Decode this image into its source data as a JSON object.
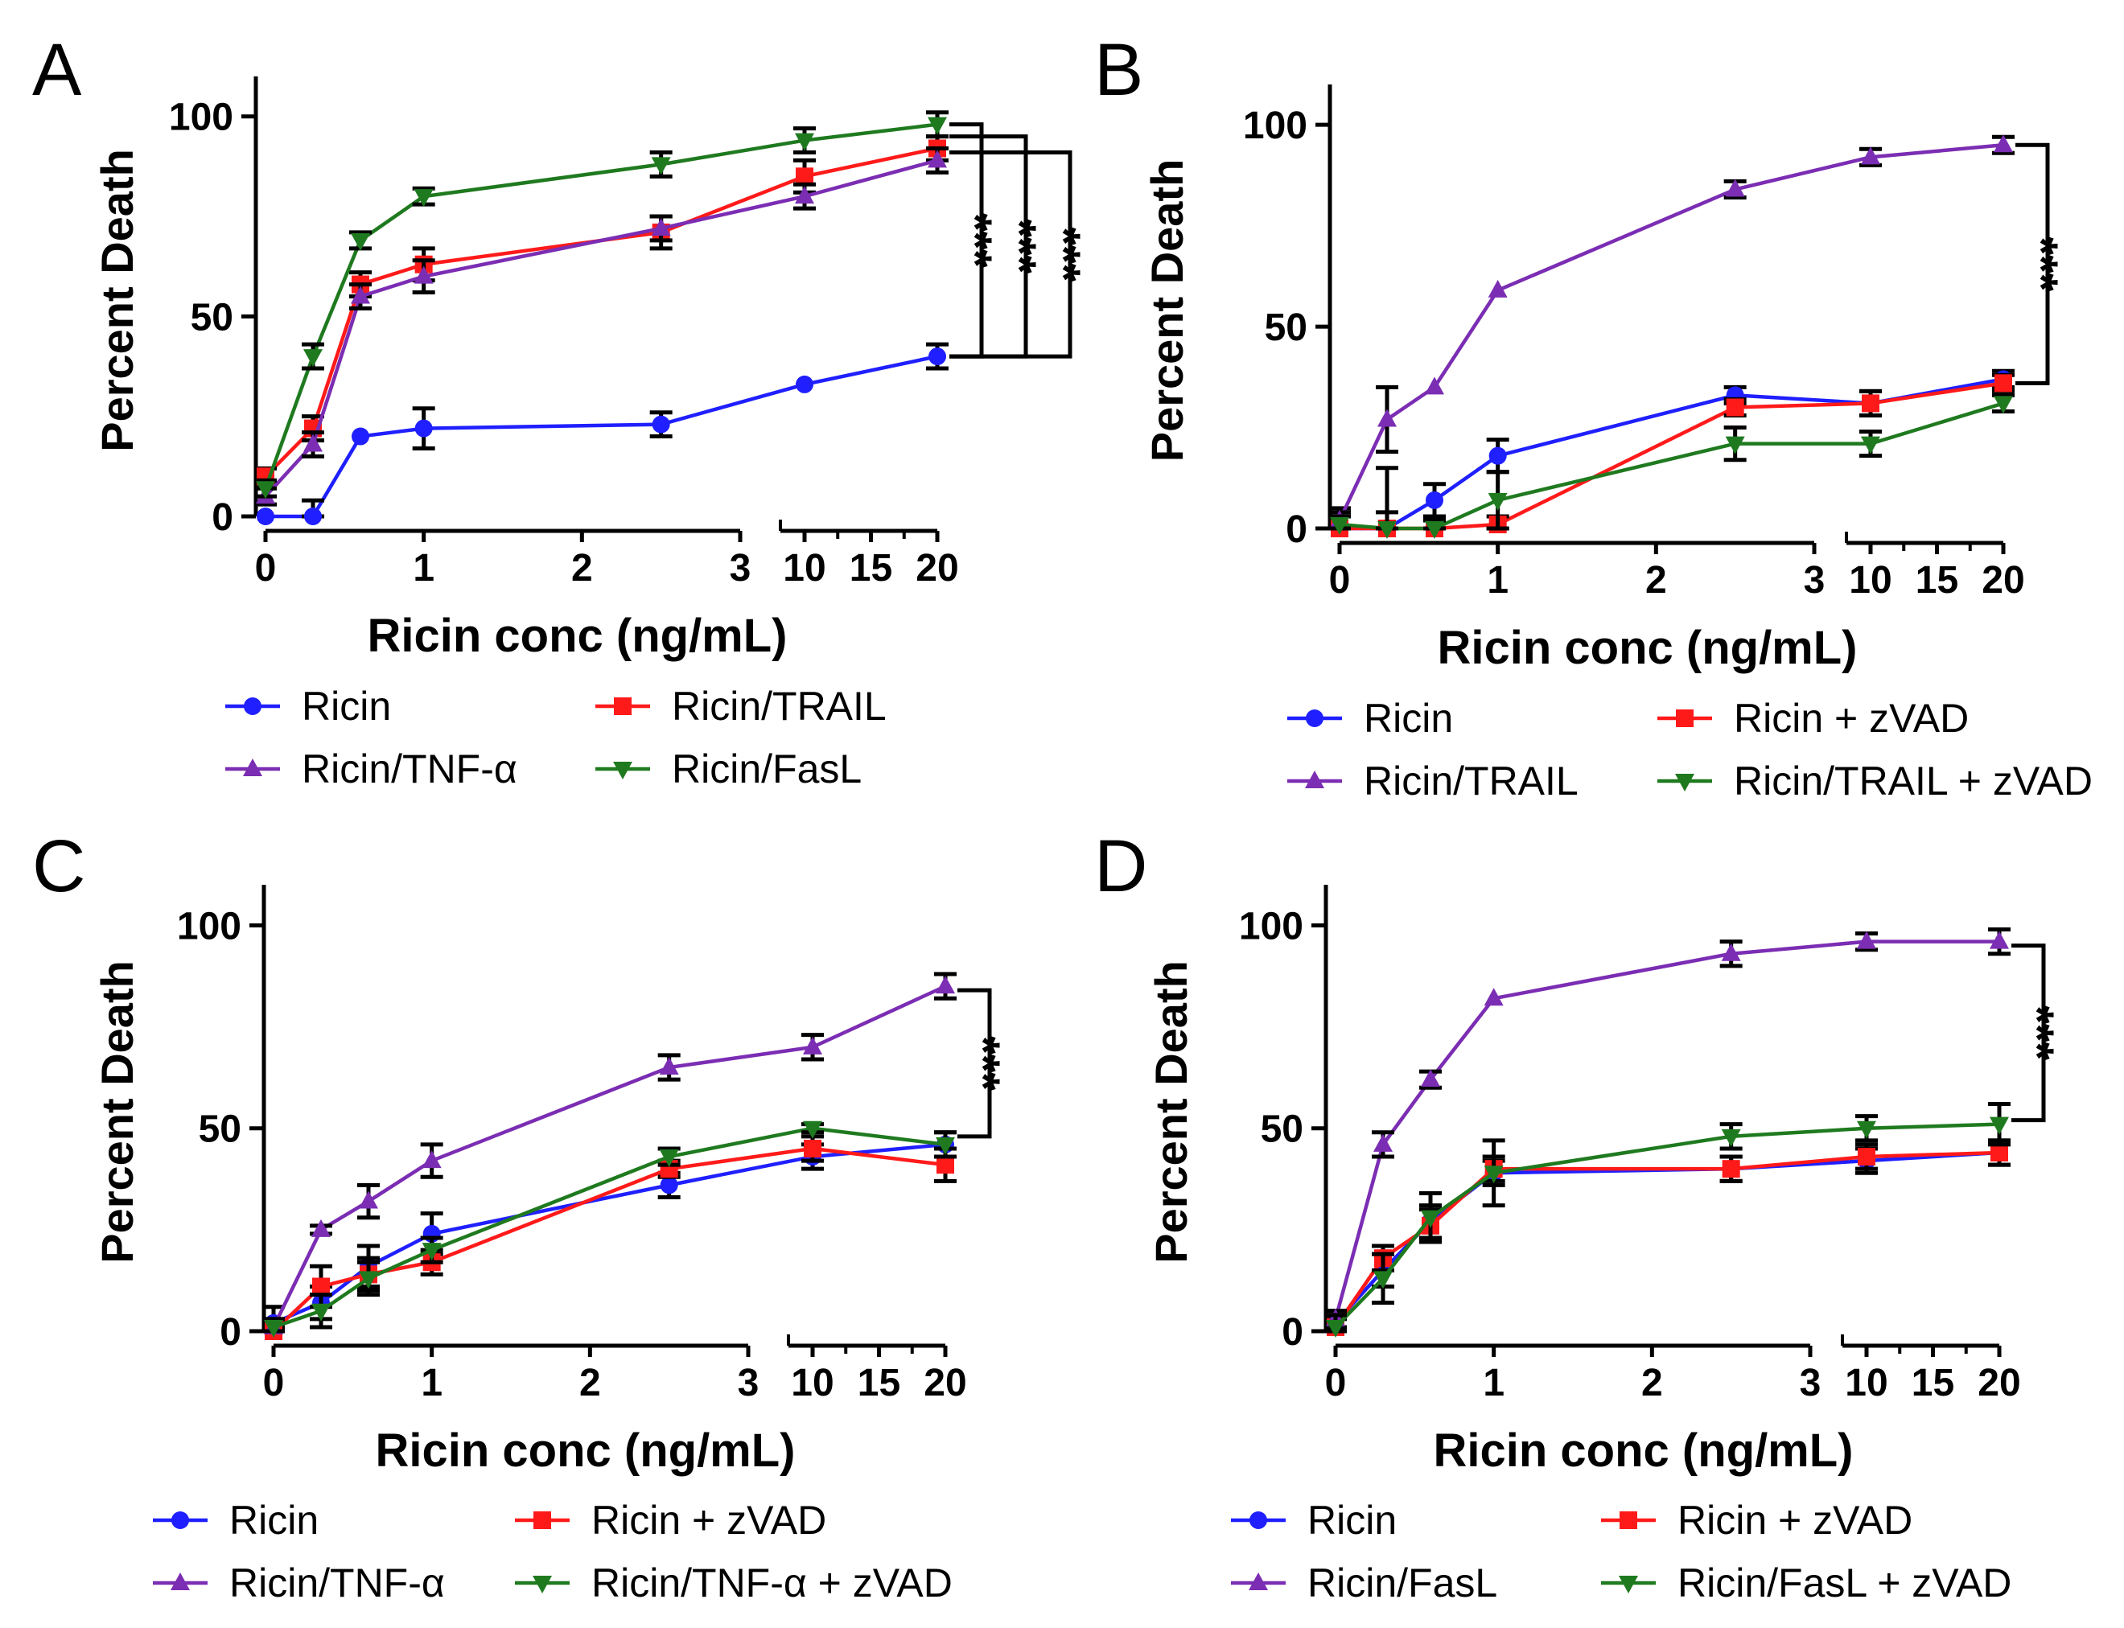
{
  "colors": {
    "ricin": "#1f1fff",
    "violet": "#7b2db3",
    "red": "#ff1a1a",
    "green": "#1f7a1f",
    "axis": "#000000"
  },
  "chart_data": [
    {
      "type": "line",
      "panel_letter": "A",
      "xlabel": "Ricin conc (ng/mL)",
      "ylabel": "Percent Death",
      "ylim": [
        0,
        110
      ],
      "y_ticks": [
        "0",
        "50",
        "100"
      ],
      "x_ticks_low": [
        "0",
        "1",
        "2",
        "3"
      ],
      "x_ticks_high": [
        "10",
        "15",
        "20"
      ],
      "x": [
        0,
        0.3,
        0.6,
        1,
        2.5,
        10,
        20
      ],
      "series": [
        {
          "name": "Ricin",
          "color": "#1f1fff",
          "marker": "circle",
          "values": [
            0,
            0,
            20,
            22,
            23,
            33,
            40
          ],
          "errors": [
            0,
            4,
            0,
            5,
            3,
            0,
            3
          ]
        },
        {
          "name": "Ricin/TRAIL",
          "color": "#ff1a1a",
          "marker": "square",
          "values": [
            10,
            22,
            58,
            63,
            71,
            85,
            92
          ],
          "errors": [
            2,
            3,
            3,
            4,
            4,
            4,
            3
          ]
        },
        {
          "name": "Ricin/TNF-α",
          "color": "#7b2db3",
          "marker": "triangle-up",
          "values": [
            5,
            18,
            55,
            60,
            72,
            80,
            89
          ],
          "errors": [
            2,
            3,
            3,
            4,
            3,
            3,
            3
          ]
        },
        {
          "name": "Ricin/FasL",
          "color": "#1f7a1f",
          "marker": "triangle-down",
          "values": [
            7,
            40,
            69,
            80,
            88,
            94,
            98
          ],
          "errors": [
            2,
            3,
            2,
            2,
            3,
            3,
            3
          ]
        }
      ],
      "significance": [
        {
          "label": "***",
          "from": 40,
          "to": 98
        },
        {
          "label": "***",
          "from": 40,
          "to": 95
        },
        {
          "label": "***",
          "from": 40,
          "to": 91
        }
      ],
      "legend": [
        {
          "label": "Ricin",
          "color": "#1f1fff",
          "marker": "circle"
        },
        {
          "label": "Ricin/TRAIL",
          "color": "#ff1a1a",
          "marker": "square"
        },
        {
          "label": "Ricin/TNF-α",
          "color": "#7b2db3",
          "marker": "triangle-up"
        },
        {
          "label": "Ricin/FasL",
          "color": "#1f7a1f",
          "marker": "triangle-down"
        }
      ]
    },
    {
      "type": "line",
      "panel_letter": "B",
      "xlabel": "Ricin conc (ng/mL)",
      "ylabel": "Percent Death",
      "ylim": [
        0,
        110
      ],
      "y_ticks": [
        "0",
        "50",
        "100"
      ],
      "x_ticks_low": [
        "0",
        "1",
        "2",
        "3"
      ],
      "x_ticks_high": [
        "10",
        "15",
        "20"
      ],
      "x": [
        0,
        0.3,
        0.6,
        1,
        2.5,
        10,
        20
      ],
      "series": [
        {
          "name": "Ricin",
          "color": "#1f1fff",
          "marker": "circle",
          "values": [
            0,
            0,
            7,
            18,
            33,
            31,
            37
          ],
          "errors": [
            5,
            4,
            4,
            4,
            2,
            3,
            2
          ]
        },
        {
          "name": "Ricin + zVAD",
          "color": "#ff1a1a",
          "marker": "square",
          "values": [
            0,
            0,
            0,
            1,
            30,
            31,
            36
          ],
          "errors": [
            0,
            0,
            0,
            2,
            2,
            3,
            2
          ]
        },
        {
          "name": "Ricin/TRAIL",
          "color": "#7b2db3",
          "marker": "triangle-up",
          "values": [
            2,
            27,
            35,
            59,
            84,
            92,
            95
          ],
          "errors": [
            2,
            8,
            0,
            0,
            2,
            2,
            2
          ]
        },
        {
          "name": "Ricin/TRAIL + zVAD",
          "color": "#1f7a1f",
          "marker": "triangle-down",
          "values": [
            1,
            0,
            0,
            7,
            21,
            21,
            31
          ],
          "errors": [
            2,
            15,
            2,
            7,
            4,
            3,
            2
          ]
        }
      ],
      "significance": [
        {
          "label": "***",
          "from": 36,
          "to": 95
        }
      ],
      "legend": [
        {
          "label": "Ricin",
          "color": "#1f1fff",
          "marker": "circle"
        },
        {
          "label": "Ricin + zVAD",
          "color": "#ff1a1a",
          "marker": "square"
        },
        {
          "label": "Ricin/TRAIL",
          "color": "#7b2db3",
          "marker": "triangle-up"
        },
        {
          "label": "Ricin/TRAIL + zVAD",
          "color": "#1f7a1f",
          "marker": "triangle-down"
        }
      ]
    },
    {
      "type": "line",
      "panel_letter": "C",
      "xlabel": "Ricin conc (ng/mL)",
      "ylabel": "Percent Death",
      "ylim": [
        0,
        110
      ],
      "y_ticks": [
        "0",
        "50",
        "100"
      ],
      "x_ticks_low": [
        "0",
        "1",
        "2",
        "3"
      ],
      "x_ticks_high": [
        "10",
        "15",
        "20"
      ],
      "x": [
        0,
        0.3,
        0.6,
        1,
        2.5,
        10,
        20
      ],
      "series": [
        {
          "name": "Ricin",
          "color": "#1f1fff",
          "marker": "circle",
          "values": [
            2,
            7,
            16,
            24,
            36,
            43,
            46
          ],
          "errors": [
            4,
            4,
            5,
            5,
            3,
            3,
            3
          ]
        },
        {
          "name": "Ricin + zVAD",
          "color": "#ff1a1a",
          "marker": "square",
          "values": [
            0,
            11,
            14,
            17,
            40,
            45,
            41
          ],
          "errors": [
            1,
            5,
            4,
            3,
            2,
            3,
            4
          ]
        },
        {
          "name": "Ricin/TNF-α",
          "color": "#7b2db3",
          "marker": "triangle-up",
          "values": [
            1,
            25,
            32,
            42,
            65,
            70,
            85
          ],
          "errors": [
            2,
            1,
            4,
            4,
            3,
            3,
            3
          ]
        },
        {
          "name": "Ricin/TNF-α + zVAD",
          "color": "#1f7a1f",
          "marker": "triangle-down",
          "values": [
            1,
            5,
            13,
            20,
            43,
            50,
            46
          ],
          "errors": [
            2,
            4,
            4,
            3,
            2,
            1,
            3
          ]
        }
      ],
      "significance": [
        {
          "label": "***",
          "from": 48,
          "to": 84
        }
      ],
      "legend": [
        {
          "label": "Ricin",
          "color": "#1f1fff",
          "marker": "circle"
        },
        {
          "label": "Ricin + zVAD",
          "color": "#ff1a1a",
          "marker": "square"
        },
        {
          "label": "Ricin/TNF-α",
          "color": "#7b2db3",
          "marker": "triangle-up"
        },
        {
          "label": "Ricin/TNF-α + zVAD",
          "color": "#1f7a1f",
          "marker": "triangle-down"
        }
      ]
    },
    {
      "type": "line",
      "panel_letter": "D",
      "xlabel": "Ricin conc (ng/mL)",
      "ylabel": "Percent Death",
      "ylim": [
        0,
        110
      ],
      "y_ticks": [
        "0",
        "50",
        "100"
      ],
      "x_ticks_low": [
        "0",
        "1",
        "2",
        "3"
      ],
      "x_ticks_high": [
        "10",
        "15",
        "20"
      ],
      "x": [
        0,
        0.3,
        0.6,
        1,
        2.5,
        10,
        20
      ],
      "series": [
        {
          "name": "Ricin",
          "color": "#1f1fff",
          "marker": "circle",
          "values": [
            2,
            15,
            27,
            39,
            40,
            42,
            44
          ],
          "errors": [
            3,
            4,
            4,
            3,
            3,
            3,
            3
          ]
        },
        {
          "name": "Ricin + zVAD",
          "color": "#ff1a1a",
          "marker": "square",
          "values": [
            1,
            18,
            26,
            40,
            40,
            43,
            44
          ],
          "errors": [
            2,
            3,
            4,
            3,
            3,
            3,
            3
          ]
        },
        {
          "name": "Ricin/FasL",
          "color": "#7b2db3",
          "marker": "triangle-up",
          "values": [
            3,
            46,
            62,
            82,
            93,
            96,
            96
          ],
          "errors": [
            2,
            3,
            2,
            0,
            3,
            2,
            3
          ]
        },
        {
          "name": "Ricin/FasL + zVAD",
          "color": "#1f7a1f",
          "marker": "triangle-down",
          "values": [
            1,
            13,
            28,
            39,
            48,
            50,
            51
          ],
          "errors": [
            3,
            6,
            6,
            8,
            3,
            3,
            5
          ]
        }
      ],
      "significance": [
        {
          "label": "***",
          "from": 52,
          "to": 95
        }
      ],
      "legend": [
        {
          "label": "Ricin",
          "color": "#1f1fff",
          "marker": "circle"
        },
        {
          "label": "Ricin + zVAD",
          "color": "#ff1a1a",
          "marker": "square"
        },
        {
          "label": "Ricin/FasL",
          "color": "#7b2db3",
          "marker": "triangle-up"
        },
        {
          "label": "Ricin/FasL + zVAD",
          "color": "#1f7a1f",
          "marker": "triangle-down"
        }
      ]
    }
  ]
}
